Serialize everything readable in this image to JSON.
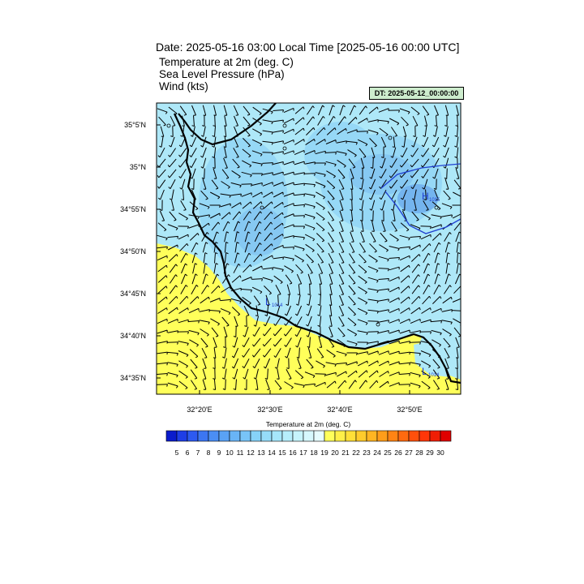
{
  "header": {
    "title": "Date: 2025-05-16  03:00 Local Time [2025-05-16  00:00 UTC]",
    "lines": [
      "Temperature at 2m   (deg. C)",
      "Sea Level Pressure   (hPa)",
      "Wind   (kts)"
    ],
    "dt_label": "DT: 2025-05-12_00:00:00"
  },
  "map": {
    "lat_labels": [
      "35°5'N",
      "35°N",
      "34°55'N",
      "34°50'N",
      "34°45'N",
      "34°40'N",
      "34°35'N"
    ],
    "lon_labels": [
      "32°20'E",
      "32°30'E",
      "32°40'E",
      "32°50'E"
    ],
    "pressure_labels": [
      {
        "letter": "H",
        "value": "1015"
      },
      {
        "letter": "L",
        "value": "1014"
      },
      {
        "letter": "L",
        "value": "1014"
      }
    ]
  },
  "colorbar": {
    "title": "Temperature at 2m  (deg. C)",
    "labels": [
      "5",
      "6",
      "7",
      "8",
      "9",
      "10",
      "11",
      "12",
      "13",
      "14",
      "15",
      "16",
      "17",
      "18",
      "19",
      "20",
      "21",
      "22",
      "23",
      "24",
      "25",
      "26",
      "27",
      "28",
      "29",
      "30"
    ],
    "colors": [
      "#0a1ccc",
      "#1e3ee6",
      "#2d5af0",
      "#3c76f2",
      "#4b8ef4",
      "#5aa2f5",
      "#69b4f6",
      "#78c4f7",
      "#86d2f8",
      "#96dcf9",
      "#a6e6fa",
      "#b6eefb",
      "#c6f4fc",
      "#d6f8fd",
      "#e6fcfe",
      "#ffff5a",
      "#ffef48",
      "#ffdf38",
      "#ffcb2c",
      "#ffb522",
      "#ff9d1a",
      "#ff8414",
      "#ff6a10",
      "#ff500c",
      "#ff3608",
      "#f01e04",
      "#e00000"
    ]
  }
}
